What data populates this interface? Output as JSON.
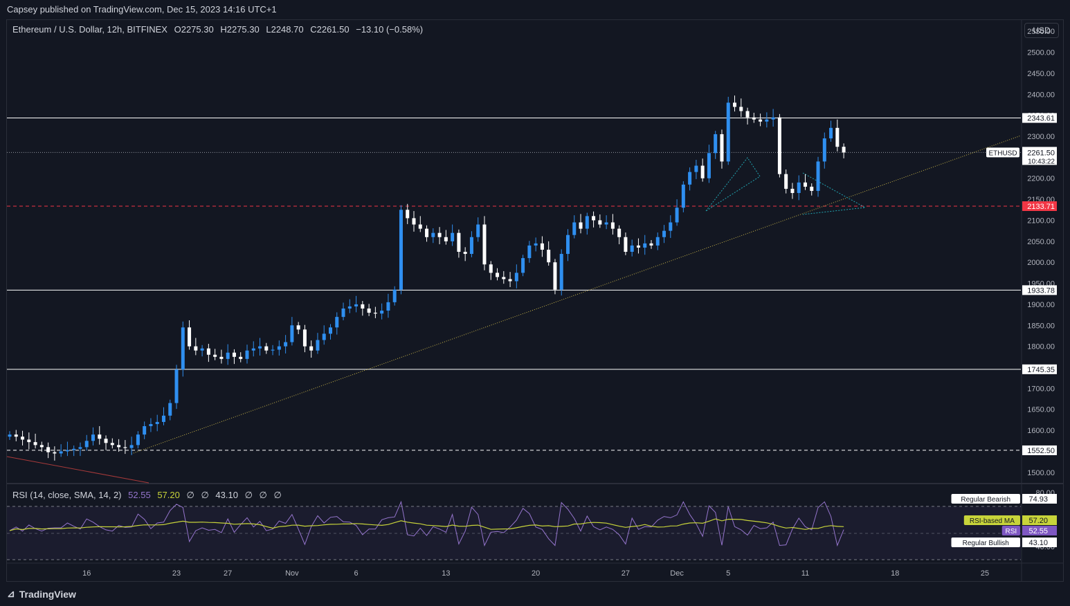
{
  "header": {
    "publisher_line": "Capsey published on TradingView.com, Dec 15, 2023 14:16 UTC+1"
  },
  "legend": {
    "symbol": "Ethereum / U.S. Dollar, 12h, BITFINEX",
    "open": "O2275.30",
    "high": "H2275.30",
    "low": "L2248.70",
    "close": "C2261.50",
    "change": "−13.10 (−0.58%)"
  },
  "rsi_legend": {
    "label": "RSI (14, close, SMA, 14, 2)",
    "rsi": "52.55",
    "ma": "57.20",
    "na1": "∅",
    "na2": "∅",
    "bb": "43.10",
    "na3": "∅",
    "na4": "∅",
    "na5": "∅"
  },
  "currency_button": "USD",
  "brand": "TradingView",
  "colors": {
    "background": "#131722",
    "bull": "#2f8ff0",
    "bear": "#ffffff",
    "rsi": "#7e57c2",
    "rsi_ma": "#c8d43a",
    "support_dashed_red": "#f23645",
    "trendline": "#c8b44a"
  },
  "chart_data": {
    "type": "candlestick",
    "price_axis": {
      "min": 1475,
      "max": 2575,
      "ticks": [
        "2550.00",
        "2500.00",
        "2450.00",
        "2400.00",
        "2350.00",
        "2300.00",
        "2250.00",
        "2200.00",
        "2150.00",
        "2100.00",
        "2050.00",
        "2000.00",
        "1950.00",
        "1900.00",
        "1850.00",
        "1800.00",
        "1750.00",
        "1700.00",
        "1650.00",
        "1600.00",
        "1550.00",
        "1500.00"
      ]
    },
    "time_axis": {
      "labels": [
        {
          "label": "16",
          "i": 12
        },
        {
          "label": "23",
          "i": 26
        },
        {
          "label": "27",
          "i": 34
        },
        {
          "label": "Nov",
          "i": 44
        },
        {
          "label": "6",
          "i": 54
        },
        {
          "label": "13",
          "i": 68
        },
        {
          "label": "20",
          "i": 82
        },
        {
          "label": "27",
          "i": 96
        },
        {
          "label": "Dec",
          "i": 104
        },
        {
          "label": "5",
          "i": 112
        },
        {
          "label": "11",
          "i": 124
        },
        {
          "label": "18",
          "i": 138
        },
        {
          "label": "25",
          "i": 152
        }
      ]
    },
    "levels": [
      {
        "value": 2343.61,
        "label": "2343.61",
        "style": "solid"
      },
      {
        "value": 2133.71,
        "label": "2133.71",
        "style": "dashed-red"
      },
      {
        "value": 1933.78,
        "label": "1933.78",
        "style": "solid"
      },
      {
        "value": 1745.35,
        "label": "1745.35",
        "style": "solid"
      },
      {
        "value": 1552.5,
        "label": "1552.50",
        "style": "dashed"
      }
    ],
    "last_price": {
      "value": 2261.5,
      "label": "2261.50",
      "countdown": "10:43:22",
      "symbol_tag": "ETHUSD"
    },
    "close_series": [
      1590,
      1585,
      1578,
      1572,
      1565,
      1560,
      1548,
      1545,
      1550,
      1553,
      1556,
      1560,
      1575,
      1590,
      1580,
      1570,
      1565,
      1560,
      1558,
      1565,
      1590,
      1610,
      1615,
      1620,
      1635,
      1665,
      1745,
      1845,
      1800,
      1790,
      1795,
      1780,
      1775,
      1770,
      1785,
      1775,
      1770,
      1790,
      1795,
      1800,
      1790,
      1792,
      1800,
      1810,
      1850,
      1840,
      1800,
      1790,
      1815,
      1830,
      1845,
      1870,
      1890,
      1895,
      1900,
      1890,
      1880,
      1878,
      1885,
      1905,
      1935,
      2125,
      2105,
      2090,
      2080,
      2060,
      2070,
      2060,
      2050,
      2070,
      2025,
      2020,
      2060,
      2090,
      1995,
      1975,
      1965,
      1960,
      1955,
      1975,
      2010,
      2040,
      2045,
      2030,
      2000,
      1935,
      2020,
      2065,
      2095,
      2080,
      2110,
      2100,
      2090,
      2095,
      2080,
      2060,
      2025,
      2040,
      2035,
      2045,
      2040,
      2060,
      2075,
      2095,
      2130,
      2185,
      2215,
      2230,
      2200,
      2260,
      2305,
      2240,
      2380,
      2370,
      2360,
      2345,
      2340,
      2335,
      2340,
      2345,
      2210,
      2175,
      2165,
      2190,
      2180,
      2170,
      2240,
      2295,
      2320,
      2275,
      2261.5
    ],
    "rsi": {
      "upper_band": 80,
      "middle": 57.2,
      "levels": [
        {
          "label": "Regular Bearish",
          "value": "74.93"
        },
        {
          "label": "RSI-based MA",
          "value": "57.20"
        },
        {
          "label": "RSI",
          "value": "52.55"
        },
        {
          "label": "Regular Bullish",
          "value": "43.10"
        }
      ],
      "axis_labels": [
        "80.00",
        "40.00"
      ]
    }
  }
}
